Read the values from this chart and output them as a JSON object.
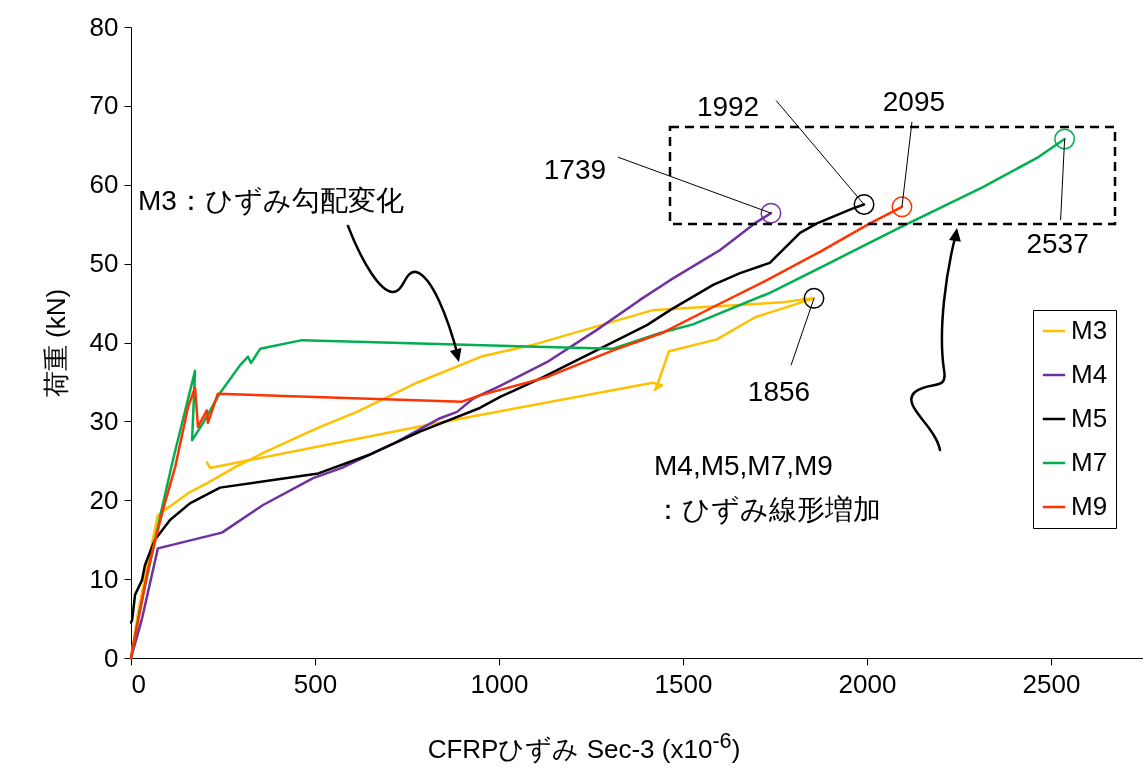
{
  "chart_data": {
    "type": "line",
    "xlabel": "CFRPひずみ Sec-3 (x10$^{-6}$)",
    "ylabel": "荷重 (kN)",
    "xlim": [
      0,
      2750
    ],
    "xticks": [
      0,
      500,
      1000,
      1500,
      2000,
      2500
    ],
    "ylim": [
      0,
      80
    ],
    "yticks": [
      0,
      10,
      20,
      30,
      40,
      50,
      60,
      70,
      80
    ],
    "legend": "right",
    "series": [
      {
        "name": "M3",
        "color": "#ffc000",
        "x": [
          0,
          20,
          50,
          73,
          155,
          212,
          283,
          359,
          514,
          614,
          777,
          957,
          1092,
          1418,
          1456,
          1772,
          1832,
          1856,
          1696,
          1592,
          1462,
          1432,
          1424,
          1443,
          1418,
          948,
          767,
          215,
          206
        ],
        "values": [
          0,
          6,
          13,
          18.1,
          20.9,
          22.3,
          24.2,
          26,
          29.3,
          31.2,
          34.9,
          38.3,
          39.7,
          44.1,
          44.2,
          45.1,
          45.5,
          45.6,
          43.2,
          40.4,
          38.9,
          34.9,
          34,
          34.6,
          34.9,
          30.8,
          29.2,
          24.1,
          24.8
        ]
      },
      {
        "name": "M4",
        "color": "#7030a0",
        "x": [
          0,
          30,
          73,
          247,
          359,
          495,
          573,
          722,
          840,
          886,
          930,
          1003,
          1130,
          1266,
          1383,
          1465,
          1600,
          1701,
          1739
        ],
        "values": [
          0,
          5,
          13.9,
          15.9,
          19.4,
          22.8,
          24.1,
          27.4,
          30.4,
          31.2,
          32.9,
          34.5,
          37.5,
          41.6,
          45.4,
          47.9,
          51.7,
          55.3,
          56.4
        ]
      },
      {
        "name": "M5",
        "color": "#000000",
        "x": [
          0,
          3,
          11,
          30,
          38,
          65,
          106,
          160,
          242,
          509,
          644,
          785,
          948,
          1003,
          1120,
          1402,
          1465,
          1582,
          1655,
          1736,
          1818,
          1864,
          1962,
          1992
        ],
        "values": [
          4.5,
          4.8,
          8,
          9.9,
          11.8,
          15,
          17.5,
          19.6,
          21.6,
          23.4,
          25.7,
          28.7,
          31.7,
          33.1,
          35.6,
          42.2,
          44.1,
          47.3,
          48.8,
          50.1,
          53.9,
          55.1,
          57,
          57.5
        ]
      },
      {
        "name": "M7",
        "color": "#00b050",
        "x": [
          0,
          24,
          87,
          114,
          141,
          174,
          166,
          196,
          242,
          296,
          318,
          326,
          351,
          465,
          1310,
          1438,
          1527,
          1736,
          1899,
          2090,
          2315,
          2462,
          2537
        ],
        "values": [
          0,
          6.1,
          19.6,
          25.1,
          30.2,
          36.4,
          27.6,
          29.8,
          33.6,
          37.1,
          38.2,
          37.4,
          39.2,
          40.3,
          39.2,
          41.2,
          42.3,
          46.3,
          50.1,
          54.6,
          59.7,
          63.4,
          65.8
        ]
      },
      {
        "name": "M9",
        "color": "#ff3300",
        "x": [
          0,
          46,
          87,
          120,
          155,
          174,
          182,
          206,
          209,
          236,
          899,
          948,
          1130,
          1310,
          1443,
          1582,
          1728,
          1872,
          2008,
          2095
        ],
        "values": [
          0,
          11.2,
          18.8,
          24.2,
          31.8,
          34.3,
          29.3,
          31.4,
          29.8,
          33.5,
          32.5,
          33.3,
          35.6,
          39,
          41.2,
          44.5,
          47.9,
          51.5,
          55.1,
          57.2
        ]
      }
    ],
    "annotations": [
      {
        "text": "1739",
        "x": 1739,
        "y": 56.4
      },
      {
        "text": "1992",
        "x": 1992,
        "y": 57.5
      },
      {
        "text": "2095",
        "x": 2095,
        "y": 57.2
      },
      {
        "text": "2537",
        "x": 2537,
        "y": 65.8
      },
      {
        "text": "1856",
        "x": 1856,
        "y": 45.6
      },
      "M3：ひずみ勾配変化",
      "M4,M5,M7,M9\n：ひずみ線形増加"
    ]
  }
}
